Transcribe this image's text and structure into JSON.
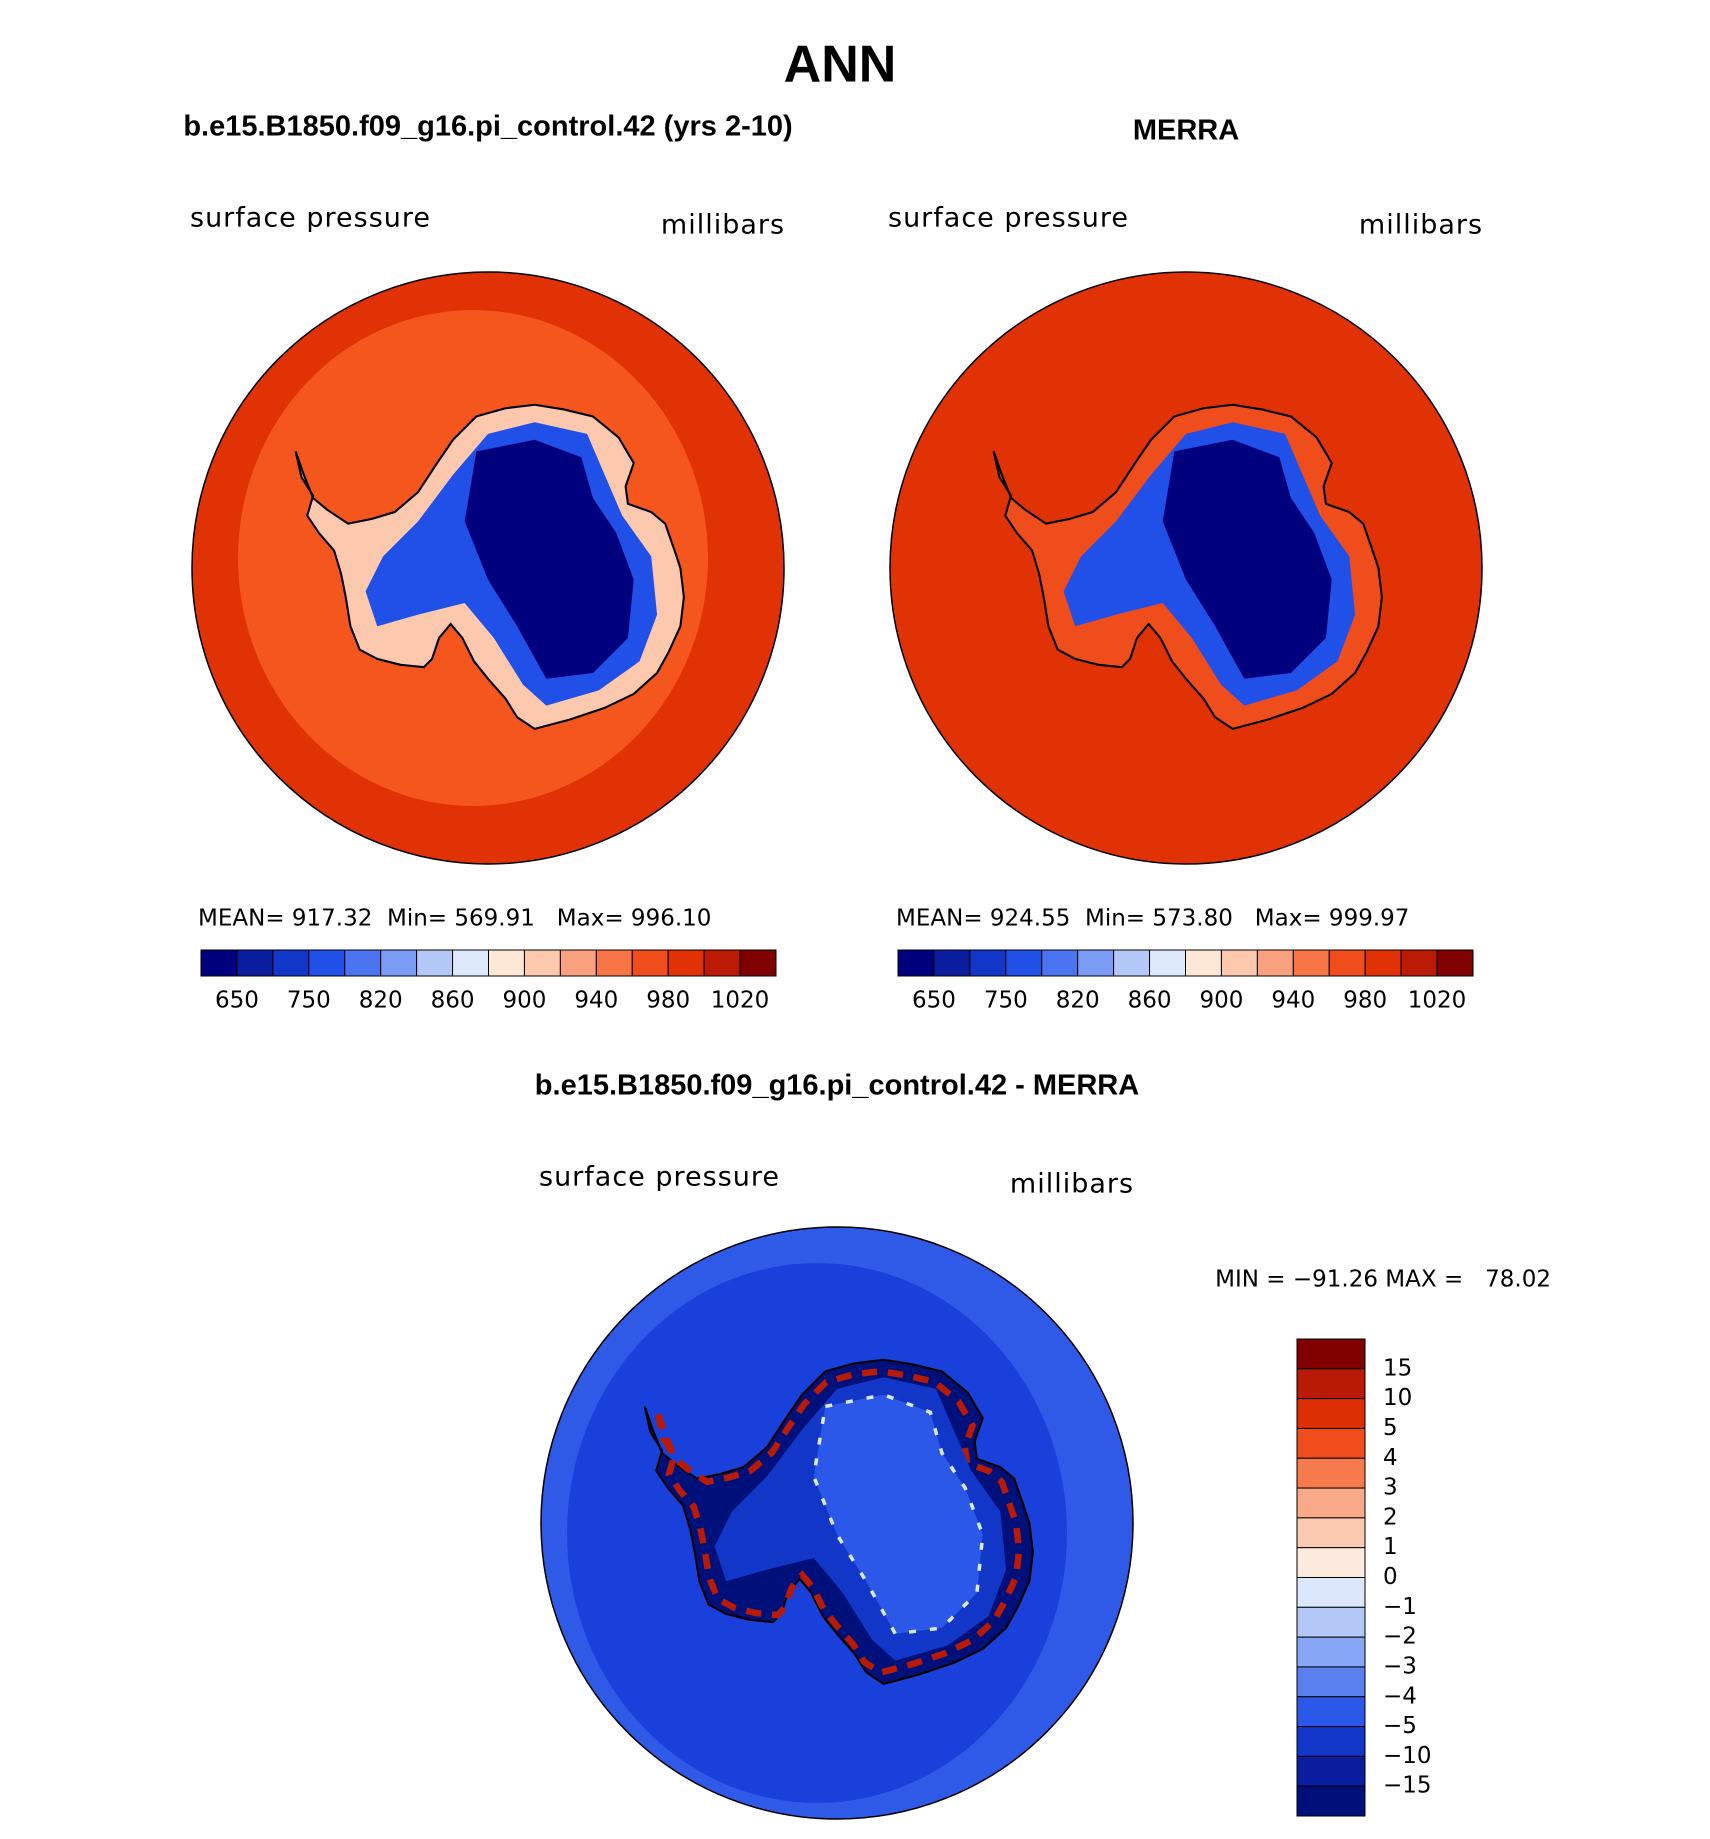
{
  "title": "ANN",
  "panels": [
    {
      "title": "b.e15.B1850.f09_g16.pi_control.42 (yrs 2-10)",
      "left_label": "surface pressure",
      "right_label": "millibars",
      "stats": "MEAN= 917.32  Min= 569.91   Max= 996.10",
      "colorbar": {
        "labels": [
          "650",
          "750",
          "820",
          "860",
          "900",
          "940",
          "980",
          "1020"
        ]
      }
    },
    {
      "title": "MERRA",
      "left_label": "surface pressure",
      "right_label": "millibars",
      "stats": "MEAN= 924.55  Min= 573.80   Max= 999.97",
      "colorbar": {
        "labels": [
          "650",
          "750",
          "820",
          "860",
          "900",
          "940",
          "980",
          "1020"
        ]
      }
    }
  ],
  "difference": {
    "title": "b.e15.B1850.f09_g16.pi_control.42 - MERRA",
    "left_label": "surface pressure",
    "right_label": "millibars",
    "stats": "MIN = −91.26 MAX =   78.02",
    "colorbar": {
      "labels": [
        "15",
        "10",
        "5",
        "4",
        "3",
        "2",
        "1",
        "0",
        "−1",
        "−2",
        "−3",
        "−4",
        "−5",
        "−10",
        "−15"
      ]
    }
  },
  "colors": {
    "absolute": [
      "#00007f",
      "#0a1d9e",
      "#1236c8",
      "#2050e8",
      "#4a74f0",
      "#7b9cf5",
      "#b3c8f7",
      "#dde8fb",
      "#fde8d8",
      "#fcc9ae",
      "#f9a07e",
      "#f67445",
      "#f04d1d",
      "#e03205",
      "#bb1b05",
      "#800000"
    ],
    "difference": [
      "#800000",
      "#b81a05",
      "#dc2f04",
      "#f04d1d",
      "#f67a4c",
      "#f9a988",
      "#fccab0",
      "#fdeadf",
      "#dbe8fb",
      "#b3c8f7",
      "#87a6f5",
      "#5a80ef",
      "#2b58e8",
      "#1236c8",
      "#0a1d9e",
      "#00107a"
    ]
  }
}
